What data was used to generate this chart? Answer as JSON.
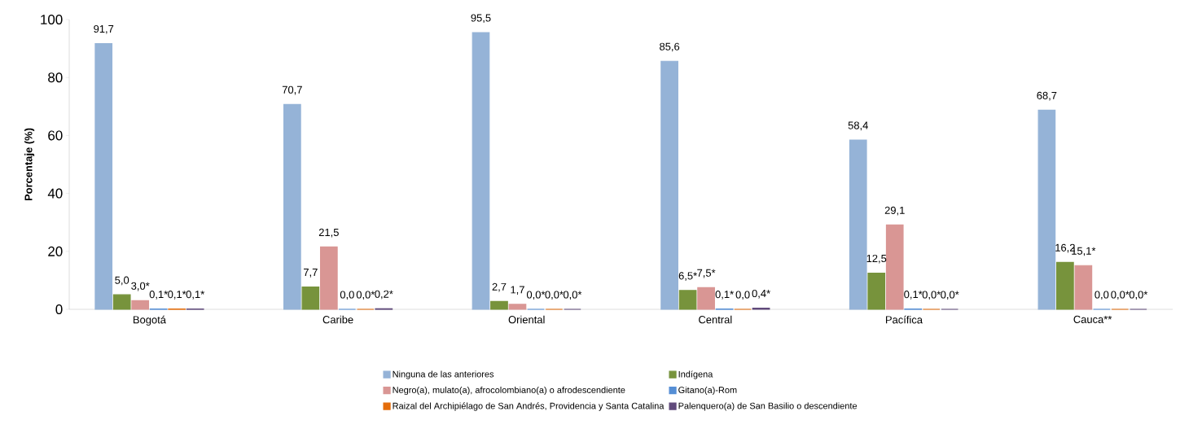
{
  "chart_data": {
    "type": "bar",
    "ylabel": "Porcentaje (%)",
    "categories": [
      "Bogotá",
      "Caribe",
      "Oriental",
      "Central",
      "Pacífica",
      "Cauca**"
    ],
    "series": [
      {
        "name": "Ninguna de las anteriores",
        "color": "#95b3d7",
        "values": [
          91.7,
          70.7,
          95.5,
          85.6,
          58.4,
          68.7
        ],
        "value_labels": [
          "91,7",
          "70,7",
          "95,5",
          "85,6",
          "58,4",
          "68,7"
        ]
      },
      {
        "name": "Indígena",
        "color": "#77933c",
        "values": [
          5.0,
          7.7,
          2.7,
          6.5,
          12.5,
          16.2
        ],
        "value_labels": [
          "5,0",
          "7,7",
          "2,7",
          "6,5*",
          "12,5",
          "16,2"
        ]
      },
      {
        "name": "Negro(a), mulato(a), afrocolombiano(a) o afrodescendiente",
        "color": "#d99694",
        "values": [
          3.0,
          21.5,
          1.7,
          7.5,
          29.1,
          15.1
        ],
        "value_labels": [
          "3,0*",
          "21,5",
          "1,7",
          "7,5*",
          "29,1",
          "15,1*"
        ]
      },
      {
        "name": "Gitano(a)-Rom",
        "color": "#558ed5",
        "values": [
          0.1,
          0.0,
          0.0,
          0.1,
          0.1,
          0.0
        ],
        "value_labels": [
          "0,1*",
          "0,0",
          "0,0*",
          "0,1*",
          "0,1*",
          "0,0"
        ]
      },
      {
        "name": "Raizal del Archipiélago de San Andrés, Providencia y Santa Catalina",
        "color": "#e46c0a",
        "values": [
          0.1,
          0.0,
          0.0,
          0.0,
          0.0,
          0.0
        ],
        "value_labels": [
          "0,1*",
          "0,0*",
          "0,0*",
          "0,0",
          "0,0*",
          "0,0*"
        ]
      },
      {
        "name": "Palenquero(a) de San Basilio o descendiente",
        "color": "#604a7b",
        "values": [
          0.1,
          0.2,
          0.0,
          0.4,
          0.0,
          0.0
        ],
        "value_labels": [
          "0,1*",
          "0,2*",
          "0,0*",
          "0,4*",
          "0,0*",
          "0,0*"
        ]
      }
    ],
    "ylim": [
      0,
      100
    ],
    "yticks": [
      0,
      20,
      40,
      60,
      80,
      100
    ],
    "grid": false,
    "legend": "bottom"
  }
}
